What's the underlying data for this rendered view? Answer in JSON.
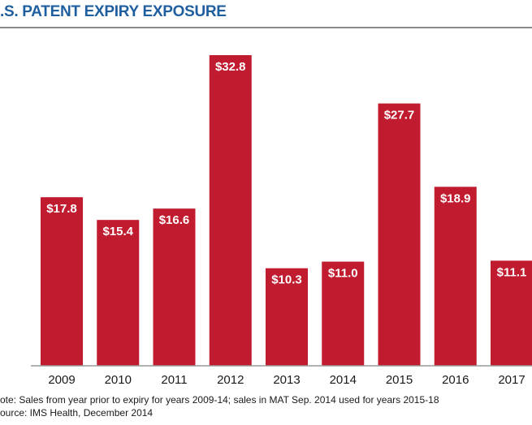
{
  "chart_data": {
    "type": "bar",
    "title": ".S. PATENT EXPIRY EXPOSURE",
    "categories": [
      "2009",
      "2010",
      "2011",
      "2012",
      "2013",
      "2014",
      "2015",
      "2016",
      "2017"
    ],
    "values": [
      17.8,
      15.4,
      16.6,
      32.8,
      10.3,
      11.0,
      27.7,
      18.9,
      11.1
    ],
    "value_labels": [
      "$17.8",
      "$15.4",
      "$16.6",
      "$32.8",
      "$10.3",
      "$11.0",
      "$27.7",
      "$18.9",
      "$11.1"
    ],
    "xlabel": "",
    "ylabel": "",
    "ylim": [
      0,
      34
    ],
    "grid": false,
    "legend": "none",
    "bar_color": "#c11b2f",
    "title_color": "#1f5e9f"
  },
  "footer": {
    "note": "ote: Sales from year prior to expiry for years 2009-14; sales in MAT Sep. 2014 used for years 2015-18",
    "source": "ource: IMS Health, December 2014"
  }
}
